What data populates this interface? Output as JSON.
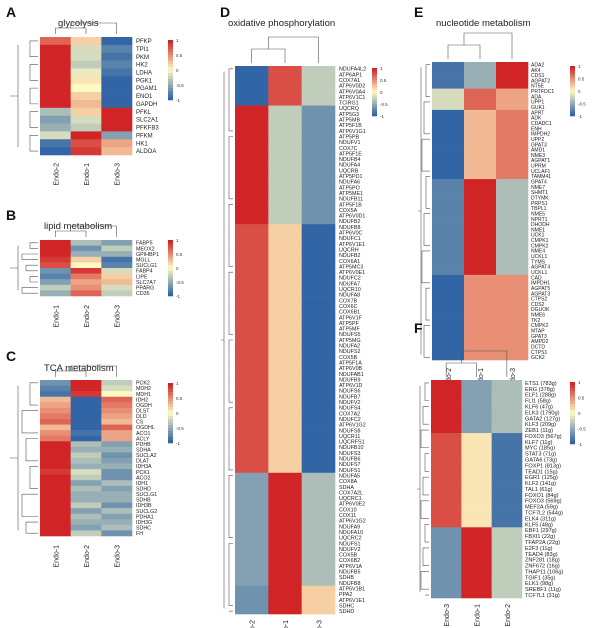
{
  "chart_data": [
    {
      "type": "heatmap",
      "panel": "A",
      "title": "glycolysis",
      "columns": [
        "Endo-2",
        "Endo-1",
        "Endo-3"
      ],
      "rows": [
        "PFKP",
        "TPI1",
        "PKM",
        "HK2",
        "LDHA",
        "PGK1",
        "PGAM1",
        "ENO1",
        "GAPDH",
        "PFKL",
        "SLC2A1",
        "PFKFB3",
        "PFKM",
        "HK1",
        "ALDOA"
      ],
      "values": [
        [
          0.7,
          0.2,
          -1
        ],
        [
          1,
          -0.2,
          -0.8
        ],
        [
          1,
          -0.2,
          -0.9
        ],
        [
          1,
          -0.3,
          -0.8
        ],
        [
          1,
          -0.1,
          -0.9
        ],
        [
          1,
          0.1,
          -1
        ],
        [
          1,
          0,
          -1
        ],
        [
          1,
          0.2,
          -1
        ],
        [
          1,
          0.3,
          -1
        ],
        [
          -0.4,
          0.2,
          1
        ],
        [
          -0.6,
          -0.2,
          1
        ],
        [
          -0.5,
          -0.3,
          1
        ],
        [
          -0.2,
          1,
          -0.6
        ],
        [
          -0.9,
          0.8,
          0.4
        ],
        [
          -1,
          0.9,
          0.3
        ]
      ],
      "legend_ticks": [
        "1",
        "0.5",
        "0",
        "-0.5",
        "-1"
      ],
      "scale": [
        -1,
        1
      ]
    },
    {
      "type": "heatmap",
      "panel": "B",
      "title": "lipid metabolism",
      "columns": [
        "Endo-1",
        "Endo-2",
        "Endo-3"
      ],
      "rows": [
        "FABP5",
        "MEOX2",
        "GPIHBP1",
        "MGLL",
        "SUCLG1",
        "FABP4",
        "LIPE",
        "SLC7A7",
        "PPARG",
        "CD36"
      ],
      "values": [
        [
          1,
          -0.4,
          -0.6
        ],
        [
          1,
          -0.7,
          -0.3
        ],
        [
          1,
          -0.5,
          -0.5
        ],
        [
          0.9,
          0.2,
          -0.9
        ],
        [
          0.8,
          0,
          -0.8
        ],
        [
          -0.7,
          0.9,
          -0.2
        ],
        [
          -0.8,
          0.6,
          0.2
        ],
        [
          -0.6,
          0.4,
          0.3
        ],
        [
          -0.3,
          0.5,
          -0.2
        ],
        [
          -0.5,
          0.7,
          -0.3
        ]
      ],
      "legend_ticks": [
        "1",
        "0.5",
        "0",
        "-0.5",
        "-1"
      ],
      "scale": [
        -1,
        1
      ]
    },
    {
      "type": "heatmap",
      "panel": "C",
      "title": "TCA metabolism",
      "columns": [
        "Endo-1",
        "Endo-2",
        "Endo-3"
      ],
      "rows": [
        "PCK2",
        "MDH2",
        "MDH1",
        "IDH2",
        "OGDH",
        "DLST",
        "DLD",
        "CS",
        "OGDHL",
        "ACO1",
        "ACLY",
        "PDHB",
        "SDHA",
        "SUCLA2",
        "DLAT",
        "IDH3A",
        "PCK1",
        "ACO2",
        "IDH1",
        "SDHD",
        "SUCLG1",
        "SDHB",
        "IDH3B",
        "SUCLG2",
        "PDHA1",
        "IDH3G",
        "SDHC",
        "FH"
      ],
      "values": [
        [
          -0.7,
          1,
          -0.3
        ],
        [
          -0.8,
          1,
          -0.2
        ],
        [
          -0.9,
          0.9,
          0
        ],
        [
          0.3,
          -1,
          0.7
        ],
        [
          0.4,
          -1,
          0.6
        ],
        [
          0.5,
          -1,
          0.5
        ],
        [
          0.6,
          -1,
          0.4
        ],
        [
          0.7,
          -1,
          0.3
        ],
        [
          0.3,
          -1,
          0.7
        ],
        [
          0.5,
          -0.9,
          0.4
        ],
        [
          0.6,
          -1,
          0.4
        ],
        [
          1,
          -0.4,
          -0.6
        ],
        [
          1,
          -0.5,
          -0.5
        ],
        [
          1,
          -0.3,
          -0.7
        ],
        [
          1,
          -0.4,
          -0.6
        ],
        [
          1,
          -0.5,
          -0.5
        ],
        [
          0.9,
          -0.2,
          -0.7
        ],
        [
          1,
          -0.3,
          -0.7
        ],
        [
          1,
          -0.6,
          -0.4
        ],
        [
          1,
          -0.4,
          -0.6
        ],
        [
          1,
          -0.5,
          -0.5
        ],
        [
          1,
          -0.5,
          -0.5
        ],
        [
          1,
          -0.3,
          -0.7
        ],
        [
          1,
          -0.6,
          -0.4
        ],
        [
          1,
          -0.4,
          -0.6
        ],
        [
          1,
          -0.5,
          -0.5
        ],
        [
          1,
          -0.6,
          -0.4
        ],
        [
          1,
          -0.3,
          -0.7
        ]
      ],
      "legend_ticks": [
        "1",
        "0.5",
        "0",
        "-0.5",
        "-1"
      ],
      "scale": [
        -1,
        1
      ]
    },
    {
      "type": "heatmap",
      "panel": "D",
      "title": "oxidative phosphorylation",
      "columns": [
        "Endo-2",
        "Endo-1",
        "Endo-3"
      ],
      "rows": [
        "NDUFA4L2",
        "ATP6AP1",
        "COX7A1",
        "ATP6V0D2",
        "ATP6V0A4",
        "ATP6V1C1",
        "TCIRG1",
        "UQCRQ",
        "ATP5G3",
        "ATP5MB",
        "ATP5F1B",
        "ATP6V1G1",
        "ATP5PB",
        "NDUFV1",
        "COX7C",
        "ATP5F1E",
        "NDUFB4",
        "NDUFA4",
        "UQCRB",
        "ATP5PD1",
        "NDUFA6",
        "ATP5PO",
        "ATP5ME1",
        "NDUFB11",
        "ATP5F1B",
        "COX5A",
        "ATP6V0D1",
        "NDUFB2",
        "NDUFB8",
        "ATP6V0C",
        "NDUFC1",
        "ATP6V1E1",
        "UQCRH",
        "NDUFB2",
        "COX6A1",
        "ATP5MC3",
        "ATP6V0E1",
        "NDUFC2",
        "NDUFA7",
        "UQCR10",
        "NDUFA8",
        "COX7B",
        "COX6C",
        "COX6B1",
        "ATP6V1F",
        "ATP5PF",
        "ATP5MF",
        "NDUFS5",
        "ATP5MG",
        "NDUFA2",
        "NDUFS2",
        "COX5B",
        "ATP5F1A",
        "ATP6V0B",
        "NDUFAB1",
        "NDUFB9",
        "ATP6V1D",
        "NDUFS6",
        "NDUFB7",
        "NDUFV2",
        "NDUFS4",
        "COX7A2",
        "NDUFC2",
        "ATP6V1G2",
        "NDUFS8",
        "UQCR11",
        "UQCRFS1",
        "NDUFB10",
        "NDUFS3",
        "NDUFB6",
        "NDUFS7",
        "NDUFS1",
        "NDUFA5",
        "COX8A",
        "SDHA",
        "COX7A2L",
        "UQCRC1",
        "ATP6V0E2",
        "COX10",
        "COX11",
        "ATP6V1G2",
        "NDUFA9",
        "NDUFA10",
        "UQCRC2",
        "NDUFS1",
        "NDUFV2",
        "COX5B",
        "COX6B2",
        "ATP6V1A",
        "NDUFB5",
        "SDHB",
        "NDUFB8",
        "ATP6V1B1",
        "PPA2",
        "ATP6V1E1",
        "SDHC",
        "SDHD"
      ],
      "row_groups": [
        {
          "n": 7,
          "value": [
            -1,
            0.8,
            -0.3
          ]
        },
        {
          "n": 21,
          "value": [
            1,
            -0.3,
            -0.7
          ]
        },
        {
          "n": 44,
          "value": [
            0.8,
            0.2,
            -1
          ]
        },
        {
          "n": 20,
          "value": [
            -0.6,
            1,
            -0.4
          ]
        },
        {
          "n": 5,
          "value": [
            -0.7,
            1,
            0.2
          ]
        }
      ],
      "legend_ticks": [
        "1",
        "0.5",
        "0",
        "-0.5",
        "-1"
      ],
      "scale": [
        -1,
        1
      ]
    },
    {
      "type": "heatmap",
      "panel": "E",
      "title": "nucleotide metabolism",
      "columns": [
        "Endo-2",
        "Endo-1",
        "Endo-3"
      ],
      "rows": [
        "ADA2",
        "AK4",
        "CDS1",
        "AGPAT2",
        "NT5E",
        "PRTFDC1",
        "ADA",
        "UPP1",
        "GUK1",
        "APRT",
        "ADK",
        "CDADC1",
        "ENH",
        "IMPDH2",
        "UPP2",
        "GPAT3",
        "AMD1",
        "NME3",
        "AGPAT1",
        "UPRM",
        "UCLAF1",
        "TAMM41",
        "GPAT4",
        "NME7",
        "SHMT1",
        "DTYMK",
        "PRPS1",
        "TBPL1",
        "NME5",
        "NPRT1",
        "DHODH",
        "NME1",
        "UCK1",
        "CMPK1",
        "CMPK2",
        "NME4",
        "UCKL1",
        "TYMS",
        "AGPAT4",
        "UCKL1",
        "CAD",
        "IMPDH1",
        "AGPAT5",
        "AGPAT3",
        "CTPS2",
        "CDS2",
        "DGUOK",
        "NME6",
        "TK2",
        "CMPK2",
        "MTAP",
        "GPAT3",
        "AMPD2",
        "DCTD",
        "CTPS1",
        "GCK2"
      ],
      "row_groups": [
        {
          "n": 5,
          "value": [
            -0.9,
            -0.5,
            1
          ]
        },
        {
          "n": 4,
          "value": [
            -0.2,
            0.7,
            0.4
          ]
        },
        {
          "n": 13,
          "value": [
            -1,
            0.3,
            0.6
          ]
        },
        {
          "n": 18,
          "value": [
            -0.8,
            1,
            -0.4
          ]
        },
        {
          "n": 16,
          "value": [
            -1,
            0.5,
            0.5
          ]
        }
      ],
      "legend_ticks": [
        "1",
        "0.5",
        "0",
        "-0.5",
        "-1"
      ],
      "scale": [
        -1,
        1
      ]
    },
    {
      "type": "heatmap",
      "panel": "F",
      "title": "",
      "columns": [
        "Endo-3",
        "Endo-1",
        "Endo-2"
      ],
      "rows": [
        "ETS1 (783g)",
        "ERG (378g)",
        "ELF1 (288g)",
        "FLI1 (58g)",
        "KLF6 (47g)",
        "ELK3 (1790g)",
        "GATA2 (127g)",
        "KLF3 (209g)",
        "ZEB1 (11g)",
        "FOXO3 (567g)",
        "KLF7 (11g)",
        "MYC (185g)",
        "STAT3 (71g)",
        "GATA6 (73g)",
        "FOXP1 (813g)",
        "TEAD1 (15g)",
        "EGR1 (125g)",
        "KLF2 (141g)",
        "TAL1 (61g)",
        "FOXO1 (84g)",
        "FOXO3 (569g)",
        "MEF2A (59g)",
        "TCF7L2 (544g)",
        "ELK4 (311g)",
        "KLF5 (48g)",
        "EBF1 (297g)",
        "FBXI1 (22g)",
        "TFAP2A (22g)",
        "E2F3 (11g)",
        "TEAD4 (83g)",
        "ZNF281 (18g)",
        "ZNF672 (16g)",
        "THAP11 (106g)",
        "TGIF1 (35g)",
        "ELK1 (98g)",
        "SREBF1 (11g)",
        "TCF7L1 (31g)"
      ],
      "row_groups": [
        {
          "n": 9,
          "value": [
            1,
            -0.6,
            -0.4
          ]
        },
        {
          "n": 16,
          "value": [
            0.8,
            0.1,
            -0.9
          ]
        },
        {
          "n": 12,
          "value": [
            -0.7,
            1,
            -0.3
          ]
        }
      ],
      "legend_ticks": [
        "1",
        "0.5",
        "0",
        "-0.5",
        "-1"
      ],
      "scale": [
        -1,
        1
      ]
    }
  ]
}
